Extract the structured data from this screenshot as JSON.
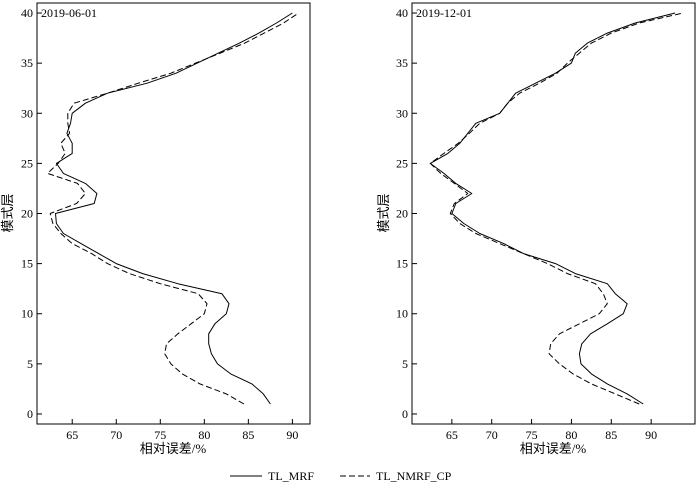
{
  "chart_data": [
    {
      "type": "line",
      "title": "2019-06-01",
      "xlabel": "相对误差/%",
      "ylabel": "模式层",
      "xlim": [
        61,
        92
      ],
      "ylim": [
        -1,
        41
      ],
      "xticks": [
        65,
        70,
        75,
        80,
        85,
        90
      ],
      "yticks": [
        0,
        5,
        10,
        15,
        20,
        25,
        30,
        35,
        40
      ],
      "grid": false,
      "series": [
        {
          "name": "TL_MRF",
          "line_style": "solid",
          "points": [
            [
              87.5,
              1
            ],
            [
              86.7,
              2
            ],
            [
              85.4,
              3
            ],
            [
              83,
              4
            ],
            [
              81.5,
              5
            ],
            [
              80.8,
              6
            ],
            [
              80.5,
              7
            ],
            [
              80.5,
              8
            ],
            [
              81.2,
              9
            ],
            [
              82.5,
              10
            ],
            [
              82.8,
              11
            ],
            [
              82,
              12
            ],
            [
              77,
              13
            ],
            [
              73,
              14
            ],
            [
              70,
              15
            ],
            [
              68,
              16
            ],
            [
              66,
              17
            ],
            [
              64,
              18
            ],
            [
              63.2,
              19
            ],
            [
              63.1,
              20
            ],
            [
              67.5,
              21
            ],
            [
              67.8,
              22
            ],
            [
              66.5,
              23
            ],
            [
              64,
              24
            ],
            [
              63.2,
              25
            ],
            [
              65,
              26
            ],
            [
              65,
              27
            ],
            [
              64.4,
              28
            ],
            [
              64.8,
              29
            ],
            [
              65,
              30
            ],
            [
              66.5,
              31
            ],
            [
              69,
              32
            ],
            [
              73.5,
              33
            ],
            [
              76.8,
              34
            ],
            [
              79.2,
              35
            ],
            [
              81.6,
              36
            ],
            [
              84,
              37
            ],
            [
              86.2,
              38
            ],
            [
              88.2,
              39
            ],
            [
              90,
              40
            ]
          ]
        },
        {
          "name": "TL_NMRF_CP",
          "line_style": "dashed",
          "points": [
            [
              84.5,
              1
            ],
            [
              82.5,
              2
            ],
            [
              79.5,
              3
            ],
            [
              77.5,
              4
            ],
            [
              76.2,
              5
            ],
            [
              75.5,
              6
            ],
            [
              75.7,
              7
            ],
            [
              77,
              8
            ],
            [
              78.5,
              9
            ],
            [
              80,
              10
            ],
            [
              80.3,
              11
            ],
            [
              79.3,
              12
            ],
            [
              75,
              13
            ],
            [
              71.5,
              14
            ],
            [
              69,
              15
            ],
            [
              67.2,
              16
            ],
            [
              65,
              17
            ],
            [
              63.7,
              18
            ],
            [
              62.8,
              19
            ],
            [
              62.5,
              20
            ],
            [
              65.5,
              21
            ],
            [
              66.5,
              22
            ],
            [
              65.6,
              23
            ],
            [
              62.2,
              24
            ],
            [
              63.4,
              25
            ],
            [
              64.2,
              26
            ],
            [
              63.7,
              27
            ],
            [
              64.7,
              28
            ],
            [
              64.5,
              29
            ],
            [
              64.5,
              30
            ],
            [
              65.2,
              31
            ],
            [
              69,
              32
            ],
            [
              72.5,
              33
            ],
            [
              76.2,
              34
            ],
            [
              79,
              35
            ],
            [
              81.8,
              36
            ],
            [
              84.6,
              37
            ],
            [
              86.8,
              38
            ],
            [
              89,
              39
            ],
            [
              90.7,
              40
            ]
          ]
        }
      ]
    },
    {
      "type": "line",
      "title": "2019-12-01",
      "xlabel": "相对误差/%",
      "ylabel": "模式层",
      "xlim": [
        60,
        95.5
      ],
      "ylim": [
        -1,
        41
      ],
      "xticks": [
        65,
        70,
        75,
        80,
        85,
        90
      ],
      "yticks": [
        0,
        5,
        10,
        15,
        20,
        25,
        30,
        35,
        40
      ],
      "grid": false,
      "series": [
        {
          "name": "TL_MRF",
          "line_style": "solid",
          "points": [
            [
              89,
              1
            ],
            [
              87,
              2
            ],
            [
              84.5,
              3
            ],
            [
              82.5,
              4
            ],
            [
              81.2,
              5
            ],
            [
              81,
              6
            ],
            [
              81.3,
              7
            ],
            [
              82.4,
              8
            ],
            [
              84.5,
              9
            ],
            [
              86.5,
              10
            ],
            [
              87,
              11
            ],
            [
              85.5,
              12
            ],
            [
              84.5,
              13
            ],
            [
              80.5,
              14
            ],
            [
              78,
              15
            ],
            [
              74,
              16
            ],
            [
              71.5,
              17
            ],
            [
              68.5,
              18
            ],
            [
              66.5,
              19
            ],
            [
              65,
              20
            ],
            [
              65.5,
              21
            ],
            [
              67.5,
              22
            ],
            [
              65.5,
              23
            ],
            [
              64,
              24
            ],
            [
              62.3,
              25
            ],
            [
              64.5,
              26
            ],
            [
              66,
              27
            ],
            [
              67,
              28
            ],
            [
              68,
              29
            ],
            [
              71,
              30
            ],
            [
              72,
              31
            ],
            [
              73,
              32
            ],
            [
              75.5,
              33
            ],
            [
              78,
              34
            ],
            [
              80,
              35
            ],
            [
              80.5,
              36
            ],
            [
              82,
              37
            ],
            [
              84.5,
              38
            ],
            [
              88,
              39
            ],
            [
              93,
              40
            ]
          ]
        },
        {
          "name": "TL_NMRF_CP",
          "line_style": "dashed",
          "points": [
            [
              88.5,
              1
            ],
            [
              85.5,
              2
            ],
            [
              82.5,
              3
            ],
            [
              80.2,
              4
            ],
            [
              78.5,
              5
            ],
            [
              77.2,
              6
            ],
            [
              77.4,
              7
            ],
            [
              78.5,
              8
            ],
            [
              81,
              9
            ],
            [
              83.5,
              10
            ],
            [
              84.5,
              11
            ],
            [
              84,
              12
            ],
            [
              83,
              13
            ],
            [
              79.5,
              14
            ],
            [
              77,
              15
            ],
            [
              74,
              16
            ],
            [
              71,
              17
            ],
            [
              68,
              18
            ],
            [
              66,
              19
            ],
            [
              64.8,
              20
            ],
            [
              65.3,
              21
            ],
            [
              67,
              22
            ],
            [
              65.3,
              23
            ],
            [
              63.6,
              24
            ],
            [
              62.3,
              25
            ],
            [
              64,
              26
            ],
            [
              65.8,
              27
            ],
            [
              67.2,
              28
            ],
            [
              68.5,
              29
            ],
            [
              71,
              30
            ],
            [
              72,
              31
            ],
            [
              73.5,
              32
            ],
            [
              76,
              33
            ],
            [
              78.2,
              34
            ],
            [
              79.5,
              35
            ],
            [
              81,
              36
            ],
            [
              82.5,
              37
            ],
            [
              85,
              38
            ],
            [
              88.5,
              39
            ],
            [
              94,
              40
            ]
          ]
        }
      ]
    }
  ],
  "legend": {
    "position": "bottom-center",
    "items": [
      {
        "label": "TL_MRF",
        "line_style": "solid"
      },
      {
        "label": "TL_NMRF_CP",
        "line_style": "dashed"
      }
    ]
  },
  "colors": {
    "line": "#000000",
    "background": "#ffffff"
  }
}
